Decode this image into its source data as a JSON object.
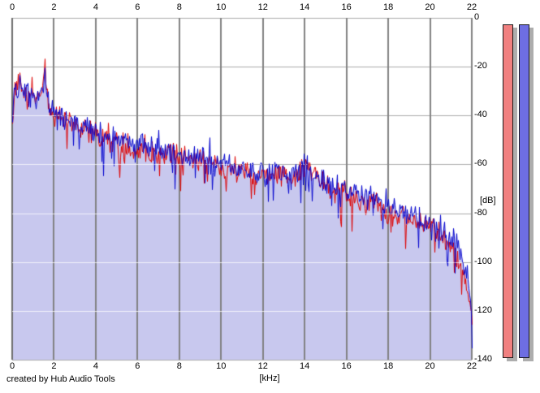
{
  "window": {
    "credit": "created by Hub Audio Tools",
    "background": "#ffffff"
  },
  "chart_data": {
    "type": "line",
    "title": "audio frequency spectrum, two channels with filled area",
    "x_axis": {
      "unit_label": "[kHz]",
      "ticks": [
        "0",
        "2",
        "4",
        "6",
        "8",
        "10",
        "12",
        "14",
        "16",
        "18",
        "20",
        "22"
      ],
      "range_khz": [
        0,
        22
      ],
      "ticks_shown_top_and_bottom": true
    },
    "y_axis": {
      "unit_label": "[dB]",
      "ticks": [
        "0",
        "-20",
        "-40",
        "-60",
        "-80",
        "-100",
        "-120",
        "-140"
      ],
      "range_db": [
        -140,
        0
      ],
      "labels_side": "right"
    },
    "grid": {
      "vertical_color": "#828282",
      "vertical_edge_color": "#6e6e6e",
      "horizontal_color": "#acacac",
      "horizontal_over_fill_color": "rgba(255,255,255,0.75)"
    },
    "series": [
      {
        "name": "red-channel",
        "color": "#de0202",
        "envelope_khz_db": [
          [
            0,
            -42
          ],
          [
            0.06,
            -30
          ],
          [
            0.3,
            -28
          ],
          [
            0.6,
            -31
          ],
          [
            1.0,
            -33
          ],
          [
            1.3,
            -30
          ],
          [
            1.55,
            -23
          ],
          [
            1.75,
            -37
          ],
          [
            2.0,
            -41
          ],
          [
            2.5,
            -43
          ],
          [
            3.0,
            -44
          ],
          [
            4.0,
            -48
          ],
          [
            5.0,
            -51
          ],
          [
            6.0,
            -53
          ],
          [
            7.0,
            -55
          ],
          [
            8.0,
            -57
          ],
          [
            9.0,
            -59
          ],
          [
            10.0,
            -61
          ],
          [
            11.0,
            -63
          ],
          [
            12.0,
            -65
          ],
          [
            12.7,
            -63
          ],
          [
            13.4,
            -67
          ],
          [
            14.0,
            -59
          ],
          [
            14.4,
            -64
          ],
          [
            15.0,
            -69
          ],
          [
            16.0,
            -73
          ],
          [
            17.0,
            -76
          ],
          [
            18.0,
            -80
          ],
          [
            19.0,
            -83
          ],
          [
            20.0,
            -86
          ],
          [
            20.6,
            -89
          ],
          [
            21.0,
            -93
          ],
          [
            21.4,
            -99
          ],
          [
            21.7,
            -108
          ],
          [
            21.9,
            -118
          ],
          [
            22.0,
            -122
          ]
        ]
      },
      {
        "name": "blue-channel",
        "color": "#0202ce",
        "fill_color": "#c8c8ee",
        "envelope_khz_db": [
          [
            0,
            -44
          ],
          [
            0.06,
            -31
          ],
          [
            0.3,
            -28
          ],
          [
            0.6,
            -31
          ],
          [
            1.0,
            -33
          ],
          [
            1.3,
            -31
          ],
          [
            1.55,
            -26
          ],
          [
            1.75,
            -36
          ],
          [
            2.0,
            -40
          ],
          [
            2.5,
            -42
          ],
          [
            3.0,
            -43
          ],
          [
            4.0,
            -47
          ],
          [
            5.0,
            -50
          ],
          [
            6.0,
            -52
          ],
          [
            7.0,
            -54
          ],
          [
            8.0,
            -56
          ],
          [
            9.0,
            -58
          ],
          [
            10.0,
            -60
          ],
          [
            11.0,
            -62
          ],
          [
            12.0,
            -64
          ],
          [
            12.7,
            -62
          ],
          [
            13.4,
            -66
          ],
          [
            14.0,
            -57
          ],
          [
            14.4,
            -63
          ],
          [
            15.0,
            -68
          ],
          [
            16.0,
            -71
          ],
          [
            17.0,
            -74
          ],
          [
            18.0,
            -78
          ],
          [
            19.0,
            -81
          ],
          [
            20.0,
            -84
          ],
          [
            20.6,
            -87
          ],
          [
            21.0,
            -90
          ],
          [
            21.4,
            -95
          ],
          [
            21.7,
            -103
          ],
          [
            21.9,
            -114
          ],
          [
            22.0,
            -128
          ]
        ]
      }
    ],
    "noise": {
      "band_db": 6,
      "dip_db": 13,
      "dip_probability": 0.11,
      "up_db": 6,
      "up_probability": 0.05
    },
    "highlight_peak": {
      "khz": 1.55,
      "red_db": -16.8,
      "blue_db": -20.5
    },
    "legend": "none"
  },
  "meters": {
    "left": {
      "name": "red channel level bar",
      "color": "#f08080"
    },
    "right": {
      "name": "blue channel level bar",
      "color": "#6e6ee2"
    },
    "shadow_color": "#adadad",
    "border_color": "#1a1a1a"
  }
}
